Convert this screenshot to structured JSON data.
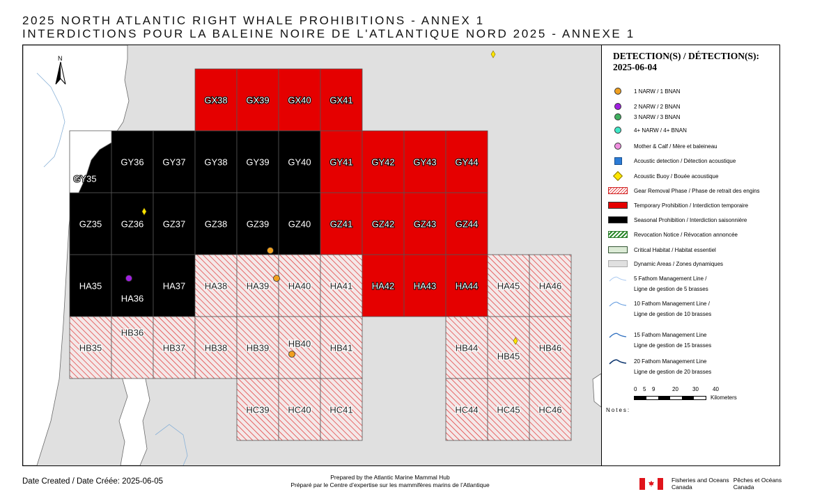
{
  "title": {
    "line1": "2025 NORTH ATLANTIC RIGHT WHALE PROHIBITIONS - ANNEX 1",
    "line2": "INTERDICTIONS POUR LA BALEINE NOIRE DE L'ATLANTIQUE NORD 2025 - ANNEXE 1"
  },
  "map": {
    "north_label": "N",
    "colors": {
      "temporary": "#e50000",
      "seasonal": "#000000",
      "gear": "#e03030",
      "land": "#ffffff",
      "water": "#e0e0e0",
      "detection1": "#f0a020",
      "detection2": "#a020e0",
      "buoy": "#ffe600"
    },
    "rows": [
      "GX",
      "GY",
      "GZ",
      "HA",
      "HB",
      "HC"
    ],
    "cols": [
      "35",
      "36",
      "37",
      "38",
      "39",
      "40",
      "41",
      "42",
      "43",
      "44",
      "45",
      "46"
    ],
    "cells": [
      {
        "id": "GX38",
        "label": "GX38",
        "status": "temporary"
      },
      {
        "id": "GX39",
        "label": "GX39",
        "status": "temporary"
      },
      {
        "id": "GX40",
        "label": "GX40",
        "status": "temporary"
      },
      {
        "id": "GX41",
        "label": "GX41",
        "status": "temporary"
      },
      {
        "id": "GY35",
        "label": "GY35",
        "status": "seasonal"
      },
      {
        "id": "GY36",
        "label": "GY36",
        "status": "seasonal"
      },
      {
        "id": "GY37",
        "label": "GY37",
        "status": "seasonal"
      },
      {
        "id": "GY38",
        "label": "GY38",
        "status": "seasonal"
      },
      {
        "id": "GY39",
        "label": "GY39",
        "status": "seasonal"
      },
      {
        "id": "GY40",
        "label": "GY40",
        "status": "seasonal"
      },
      {
        "id": "GY41",
        "label": "GY41",
        "status": "temporary"
      },
      {
        "id": "GY42",
        "label": "GY42",
        "status": "temporary"
      },
      {
        "id": "GY43",
        "label": "GY43",
        "status": "temporary"
      },
      {
        "id": "GY44",
        "label": "GY44",
        "status": "temporary"
      },
      {
        "id": "GZ35",
        "label": "GZ35",
        "status": "seasonal"
      },
      {
        "id": "GZ36",
        "label": "GZ36",
        "status": "seasonal"
      },
      {
        "id": "GZ37",
        "label": "GZ37",
        "status": "seasonal"
      },
      {
        "id": "GZ38",
        "label": "GZ38",
        "status": "seasonal"
      },
      {
        "id": "GZ39",
        "label": "GZ39",
        "status": "seasonal"
      },
      {
        "id": "GZ40",
        "label": "GZ40",
        "status": "seasonal"
      },
      {
        "id": "GZ41",
        "label": "GZ41",
        "status": "temporary"
      },
      {
        "id": "GZ42",
        "label": "GZ42",
        "status": "temporary"
      },
      {
        "id": "GZ43",
        "label": "GZ43",
        "status": "temporary"
      },
      {
        "id": "GZ44",
        "label": "GZ44",
        "status": "temporary"
      },
      {
        "id": "HA35",
        "label": "HA35",
        "status": "seasonal"
      },
      {
        "id": "HA36",
        "label": "HA36",
        "status": "seasonal"
      },
      {
        "id": "HA37",
        "label": "HA37",
        "status": "seasonal"
      },
      {
        "id": "HA38",
        "label": "HA38",
        "status": "gear"
      },
      {
        "id": "HA39",
        "label": "HA39",
        "status": "gear"
      },
      {
        "id": "HA40",
        "label": "HA40",
        "status": "gear"
      },
      {
        "id": "HA41",
        "label": "HA41",
        "status": "gear"
      },
      {
        "id": "HA42",
        "label": "HA42",
        "status": "temporary"
      },
      {
        "id": "HA43",
        "label": "HA43",
        "status": "temporary"
      },
      {
        "id": "HA44",
        "label": "HA44",
        "status": "temporary"
      },
      {
        "id": "HA45",
        "label": "HA45",
        "status": "gear"
      },
      {
        "id": "HA46",
        "label": "HA46",
        "status": "gear"
      },
      {
        "id": "HB35",
        "label": "HB35",
        "status": "gear"
      },
      {
        "id": "HB36",
        "label": "HB36",
        "status": "gear"
      },
      {
        "id": "HB37",
        "label": "HB37",
        "status": "gear"
      },
      {
        "id": "HB38",
        "label": "HB38",
        "status": "gear"
      },
      {
        "id": "HB39",
        "label": "HB39",
        "status": "gear"
      },
      {
        "id": "HB40",
        "label": "HB40",
        "status": "gear"
      },
      {
        "id": "HB41",
        "label": "HB41",
        "status": "gear"
      },
      {
        "id": "HB44",
        "label": "HB44",
        "status": "gear"
      },
      {
        "id": "HB45",
        "label": "HB45",
        "status": "gear"
      },
      {
        "id": "HB46",
        "label": "HB46",
        "status": "gear"
      },
      {
        "id": "HC39",
        "label": "HC39",
        "status": "gear"
      },
      {
        "id": "HC40",
        "label": "HC40",
        "status": "gear"
      },
      {
        "id": "HC41",
        "label": "HC41",
        "status": "gear"
      },
      {
        "id": "HC44",
        "label": "HC44",
        "status": "gear"
      },
      {
        "id": "HC45",
        "label": "HC45",
        "status": "gear"
      },
      {
        "id": "HC46",
        "label": "HC46",
        "status": "gear"
      }
    ],
    "detections": [
      {
        "grid": "GZ39",
        "type": "1 NARW"
      },
      {
        "grid": "HA40",
        "type": "1 NARW"
      },
      {
        "grid": "HB40",
        "type": "1 NARW"
      },
      {
        "grid": "HA36",
        "type": "2 NARW"
      }
    ],
    "buoys": [
      {
        "grid": "GZ36"
      },
      {
        "grid": "HB45"
      },
      {
        "grid": "GX45"
      }
    ]
  },
  "legend": {
    "title_line1": "DETECTION(S) / DÉTECTION(S):",
    "title_line2": "2025-06-04",
    "items": [
      {
        "label": "1 NARW / 1 BNAN",
        "symbol": "dot-orange"
      },
      {
        "label": "2 NARW / 2 BNAN",
        "symbol": "dot-purple"
      },
      {
        "label": "3 NARW / 3 BNAN",
        "symbol": "dot-green"
      },
      {
        "label": "4+ NARW / 4+ BNAN",
        "symbol": "dot-cyan"
      },
      {
        "label": "Mother & Calf / Mère et baleineau",
        "symbol": "dot-pink"
      },
      {
        "label": "Acoustic detection / Détection acoustique",
        "symbol": "square-blue"
      },
      {
        "label": "Acoustic Buoy / Bouée acoustique",
        "symbol": "diamond-yellow"
      },
      {
        "label": "Gear Removal Phase / Phase de retrait des engins",
        "symbol": "hatch-red"
      },
      {
        "label": "Temporary Prohibition / Interdiction temporaire",
        "symbol": "fill-red"
      },
      {
        "label": "Seasonal Prohibition / Interdiction saisonnière",
        "symbol": "fill-black"
      },
      {
        "label": "Revocation Notice / Révocation annoncée",
        "symbol": "hatch-green"
      },
      {
        "label": "Critical Habitat / Habitat essentiel",
        "symbol": "fill-lightgreen"
      },
      {
        "label": "Dynamic Areas / Zones dynamiques",
        "symbol": "fill-gray"
      }
    ],
    "fathom_lines": [
      {
        "line1": "5 Fathom Management Line /",
        "line2": "Ligne de gestion de 5 brasses"
      },
      {
        "line1": "10 Fathom Management Line /",
        "line2": "Ligne de gestion de 10 brasses"
      },
      {
        "line1": "15 Fathom Management Line",
        "line2": "Ligne de gestion de 15 brasses"
      },
      {
        "line1": "20 Fathom Management Line",
        "line2": "Ligne de gestion de 20 brasses"
      }
    ],
    "scale_ticks": [
      "0",
      "5",
      "9",
      "20",
      "30",
      "40"
    ],
    "scale_unit": "Kilometers",
    "notes_label": "Notes:"
  },
  "footer": {
    "date": "Date Created / Date Créée: 2025-06-05",
    "prepared_en": "Prepared by the Atlantic Marine Mammal Hub",
    "prepared_fr": "Préparé par le Centre d’expertise sur les mammifères marins de l’Atlantique",
    "dept_en_1": "Fisheries and Oceans",
    "dept_en_2": "Canada",
    "dept_fr_1": "Pêches et Océans",
    "dept_fr_2": "Canada"
  }
}
